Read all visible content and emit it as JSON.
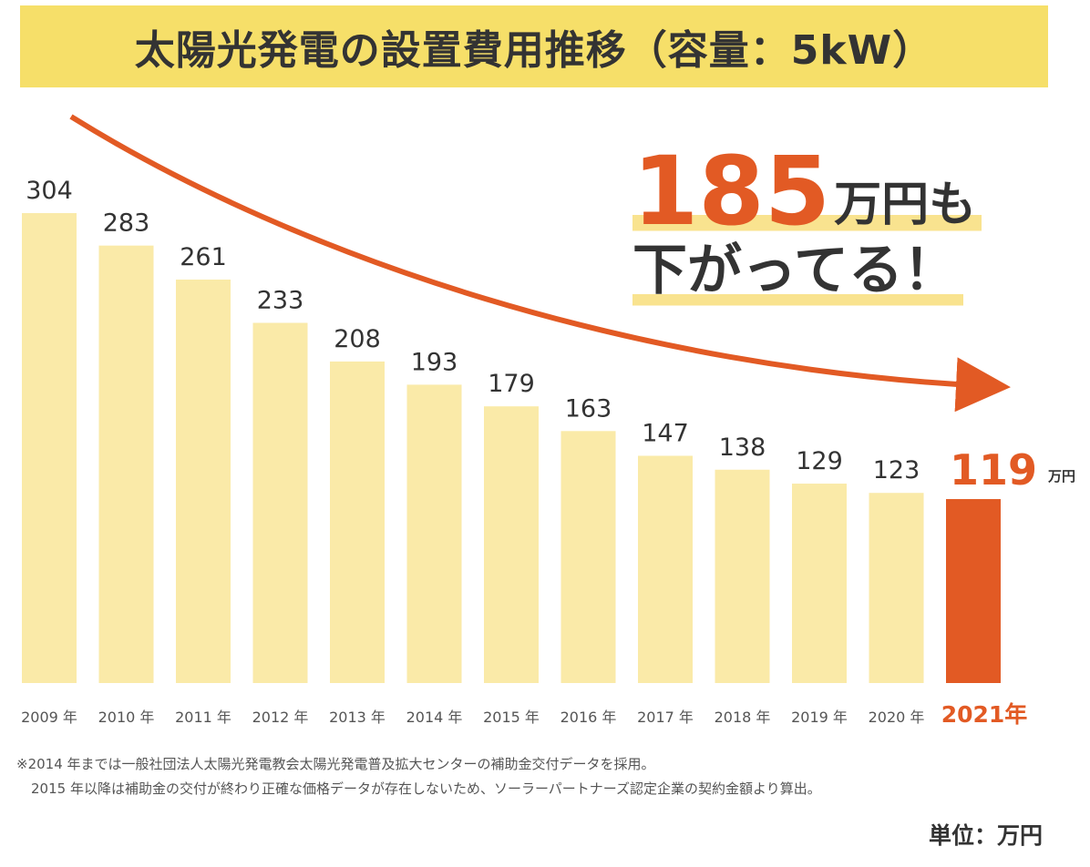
{
  "title": "太陽光発電の設置費用推移（容量：5kW）",
  "callout": {
    "amount": "185",
    "unit_suffix": "万円も",
    "line2": "下がってる！"
  },
  "colors": {
    "bar": "#faeaa8",
    "highlight": "#e25a24",
    "title_band": "#f6df69",
    "text": "#333333"
  },
  "chart_data": {
    "type": "bar",
    "categories": [
      "2009 年",
      "2010 年",
      "2011 年",
      "2012 年",
      "2013 年",
      "2014 年",
      "2015 年",
      "2016 年",
      "2017 年",
      "2018 年",
      "2019 年",
      "2020 年",
      "2021 年"
    ],
    "values": [
      304,
      283,
      261,
      233,
      208,
      193,
      179,
      163,
      147,
      138,
      129,
      123,
      119
    ],
    "value_labels": [
      "304",
      "283",
      "261",
      "233",
      "208",
      "193",
      "179",
      "163",
      "147",
      "138",
      "129",
      "123",
      "119"
    ],
    "highlight_index": 12,
    "highlight_category": "2021年",
    "highlight_unit": "万円",
    "ylim": [
      0,
      304
    ],
    "grid": false,
    "legend": "none"
  },
  "footnote": {
    "line1": "※2014 年までは一般社団法人太陽光発電教会太陽光発電普及拡大センターの補助金交付データを採用。",
    "line2": "2015 年以降は補助金の交付が終わり正確な価格データが存在しないため、ソーラーパートナーズ認定企業の契約金額より算出。"
  },
  "unit_note": "単位：万円"
}
